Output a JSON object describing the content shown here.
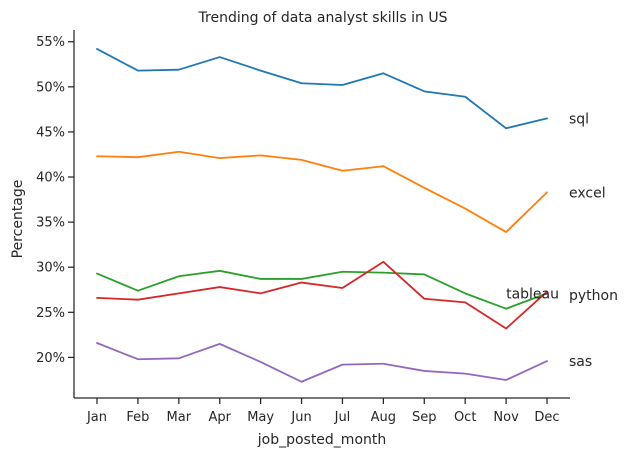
{
  "chart_data": {
    "type": "line",
    "title": "Trending of data analyst skills in US",
    "xlabel": "job_posted_month",
    "ylabel": "Percentage",
    "categories": [
      "Jan",
      "Feb",
      "Mar",
      "Apr",
      "May",
      "Jun",
      "Jul",
      "Aug",
      "Sep",
      "Oct",
      "Nov",
      "Dec"
    ],
    "ylim": [
      15.5,
      56.3
    ],
    "yticks": [
      20,
      25,
      30,
      35,
      40,
      45,
      50,
      55
    ],
    "ytick_labels": [
      "20%",
      "25%",
      "30%",
      "35%",
      "40%",
      "45%",
      "50%",
      "55%"
    ],
    "grid": false,
    "series": [
      {
        "name": "sql",
        "color": "#1f77b4",
        "values": [
          54.2,
          51.8,
          51.9,
          53.3,
          51.8,
          50.4,
          50.2,
          51.5,
          49.5,
          48.9,
          45.4,
          46.5
        ]
      },
      {
        "name": "excel",
        "color": "#ff7f0e",
        "values": [
          42.3,
          42.2,
          42.8,
          42.1,
          42.4,
          41.9,
          40.7,
          41.2,
          38.8,
          36.5,
          33.9,
          38.3
        ]
      },
      {
        "name": "tableau",
        "color": "#2ca02c",
        "values": [
          29.3,
          27.4,
          29.0,
          29.6,
          28.7,
          28.7,
          29.5,
          29.4,
          29.2,
          27.1,
          25.4,
          27.1
        ]
      },
      {
        "name": "python",
        "color": "#d62728",
        "values": [
          26.6,
          26.4,
          27.1,
          27.8,
          27.1,
          28.3,
          27.7,
          30.6,
          26.5,
          26.1,
          23.2,
          27.3
        ]
      },
      {
        "name": "sas",
        "color": "#9467bd",
        "values": [
          21.6,
          19.8,
          19.9,
          21.5,
          19.5,
          17.3,
          19.2,
          19.3,
          18.5,
          18.2,
          17.5,
          19.6
        ]
      }
    ],
    "series_label_positions": [
      {
        "name": "sql",
        "x_index": 11,
        "y": 46.5
      },
      {
        "name": "excel",
        "x_index": 11,
        "y": 38.3
      },
      {
        "name": "tableau",
        "x_index": 10,
        "y": 27.1
      },
      {
        "name": "python",
        "x_index": 11,
        "y": 26.9
      },
      {
        "name": "sas",
        "x_index": 11,
        "y": 19.6
      }
    ]
  }
}
